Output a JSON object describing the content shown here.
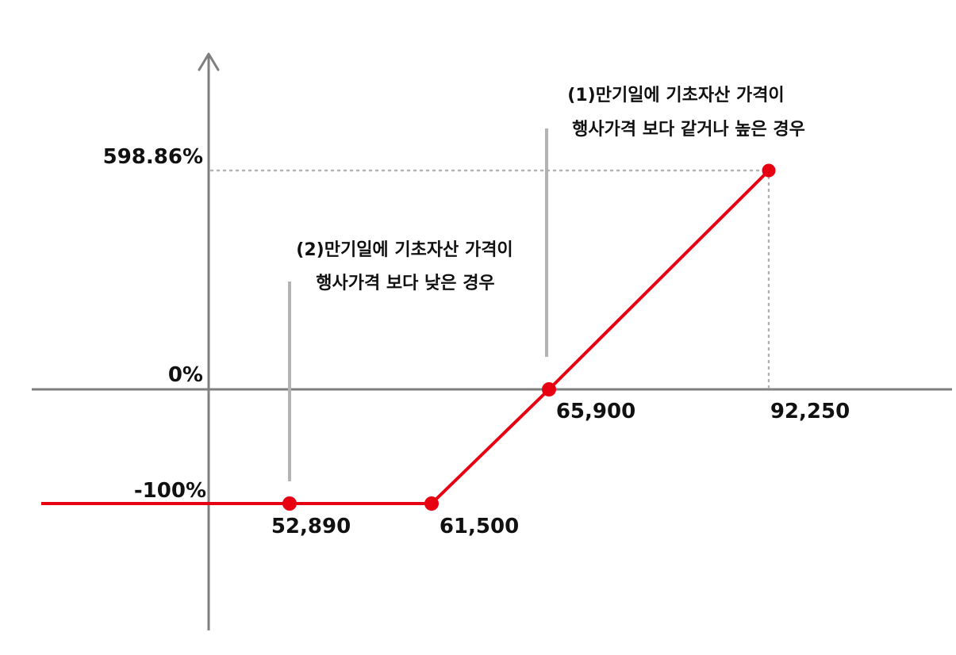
{
  "chart_data": {
    "type": "line",
    "title": "",
    "xlabel": "",
    "ylabel": "",
    "x": [
      52890,
      61500,
      65900,
      92250
    ],
    "y": [
      -100,
      -100,
      0,
      598.86
    ],
    "x_tick_labels": [
      "52,890",
      "61,500",
      "65,900",
      "92,250"
    ],
    "y_tick_labels": [
      "598.86%",
      "0%",
      "-100%"
    ],
    "y_unit": "%",
    "legend": "none",
    "grid": false,
    "series": [
      {
        "color": "#e60012",
        "extends_left": true
      }
    ],
    "annotations": [
      {
        "line1": "(1)만기일에 기초자산 가격이",
        "line2": "행사가격 보다 같거나 높은 경우"
      },
      {
        "line1": "(2)만기일에 기초자산 가격이",
        "line2": "행사가격 보다 낮은 경우"
      }
    ],
    "colors": {
      "axis": "#7f7f7f",
      "line": "#e60012",
      "guide": "#b3b3b3",
      "callout": "#b3b3b3"
    }
  }
}
